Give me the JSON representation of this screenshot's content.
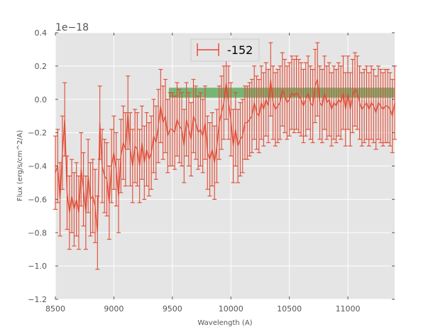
{
  "chart_data": {
    "type": "line",
    "xlabel": "Wavelength (A)",
    "ylabel": "Flux (erg/s/cm^2/A)",
    "offset_text": "1e−18",
    "xlim": [
      8500,
      11400
    ],
    "ylim": [
      -1.2,
      0.4
    ],
    "x_ticks": [
      8500,
      9000,
      9500,
      10000,
      10500,
      11000
    ],
    "x_tick_labels": [
      "8500",
      "9000",
      "9500",
      "10000",
      "10500",
      "11000"
    ],
    "y_ticks": [
      -1.2,
      -1.0,
      -0.8,
      -0.6,
      -0.4,
      -0.2,
      0.0,
      0.2,
      0.4
    ],
    "y_tick_labels": [
      "−1.2",
      "−1.0",
      "−0.8",
      "−0.6",
      "−0.4",
      "−0.2",
      "0.0",
      "0.2",
      "0.4"
    ],
    "grid": true,
    "legend_position": "top-center",
    "band": {
      "x": [
        9470,
        11400
      ],
      "y": [
        0.01,
        0.07
      ],
      "color": "#3a9b3a"
    },
    "series": [
      {
        "name": "-152",
        "color": "#e24a33",
        "error_half_width": 0.22,
        "x": [
          8500,
          8520,
          8540,
          8560,
          8580,
          8600,
          8620,
          8640,
          8660,
          8680,
          8700,
          8720,
          8740,
          8760,
          8780,
          8800,
          8820,
          8840,
          8860,
          8880,
          8900,
          8920,
          8940,
          8960,
          8980,
          9000,
          9020,
          9040,
          9060,
          9080,
          9100,
          9120,
          9140,
          9160,
          9180,
          9200,
          9220,
          9240,
          9260,
          9280,
          9300,
          9320,
          9340,
          9360,
          9380,
          9400,
          9420,
          9440,
          9460,
          9480,
          9500,
          9520,
          9540,
          9560,
          9580,
          9600,
          9620,
          9640,
          9660,
          9680,
          9700,
          9720,
          9740,
          9760,
          9780,
          9800,
          9820,
          9840,
          9860,
          9880,
          9900,
          9920,
          9940,
          9960,
          9980,
          10000,
          10020,
          10040,
          10060,
          10080,
          10100,
          10120,
          10140,
          10160,
          10180,
          10200,
          10220,
          10240,
          10260,
          10280,
          10300,
          10320,
          10340,
          10360,
          10380,
          10400,
          10420,
          10440,
          10460,
          10480,
          10500,
          10520,
          10540,
          10560,
          10580,
          10600,
          10620,
          10640,
          10660,
          10680,
          10700,
          10720,
          10740,
          10760,
          10780,
          10800,
          10820,
          10840,
          10860,
          10880,
          10900,
          10920,
          10940,
          10960,
          10980,
          11000,
          11020,
          11040,
          11060,
          11080,
          11100,
          11120,
          11140,
          11160,
          11180,
          11200,
          11220,
          11240,
          11260,
          11280,
          11300,
          11320,
          11340,
          11360,
          11380,
          11400
        ],
        "y": [
          -0.44,
          -0.4,
          -0.6,
          -0.32,
          -0.12,
          -0.56,
          -0.68,
          -0.58,
          -0.66,
          -0.6,
          -0.68,
          -0.42,
          -0.54,
          -0.68,
          -0.46,
          -0.6,
          -0.58,
          -0.64,
          -0.8,
          -0.14,
          -0.4,
          -0.46,
          -0.48,
          -0.62,
          -0.4,
          -0.32,
          -0.42,
          -0.58,
          -0.34,
          -0.26,
          -0.3,
          -0.08,
          -0.3,
          -0.4,
          -0.28,
          -0.3,
          -0.4,
          -0.26,
          -0.38,
          -0.3,
          -0.36,
          -0.32,
          -0.22,
          -0.26,
          -0.16,
          -0.04,
          -0.14,
          -0.1,
          -0.22,
          -0.18,
          -0.18,
          -0.2,
          -0.12,
          -0.16,
          -0.18,
          -0.28,
          -0.12,
          -0.18,
          -0.24,
          -0.1,
          -0.14,
          -0.2,
          -0.18,
          -0.22,
          -0.14,
          -0.32,
          -0.36,
          -0.3,
          -0.38,
          -0.28,
          -0.14,
          -0.08,
          -0.02,
          0.1,
          -0.02,
          -0.12,
          -0.28,
          -0.18,
          -0.28,
          -0.24,
          -0.22,
          -0.14,
          -0.14,
          -0.12,
          -0.1,
          -0.02,
          -0.08,
          -0.1,
          -0.02,
          -0.06,
          0.0,
          -0.04,
          0.12,
          -0.02,
          -0.06,
          -0.04,
          -0.02,
          0.06,
          0.02,
          -0.02,
          0.0,
          0.04,
          0.02,
          0.04,
          0.02,
          0.0,
          -0.04,
          0.0,
          0.04,
          -0.02,
          -0.04,
          0.08,
          0.12,
          -0.02,
          -0.04,
          0.04,
          -0.02,
          0.0,
          -0.06,
          -0.02,
          -0.04,
          0.0,
          -0.02,
          0.04,
          -0.06,
          0.04,
          -0.06,
          0.02,
          0.06,
          0.04,
          -0.02,
          -0.06,
          -0.04,
          -0.02,
          -0.06,
          -0.02,
          -0.04,
          -0.08,
          -0.02,
          -0.04,
          -0.06,
          -0.04,
          -0.04,
          -0.06,
          -0.1,
          -0.02
        ]
      }
    ]
  }
}
